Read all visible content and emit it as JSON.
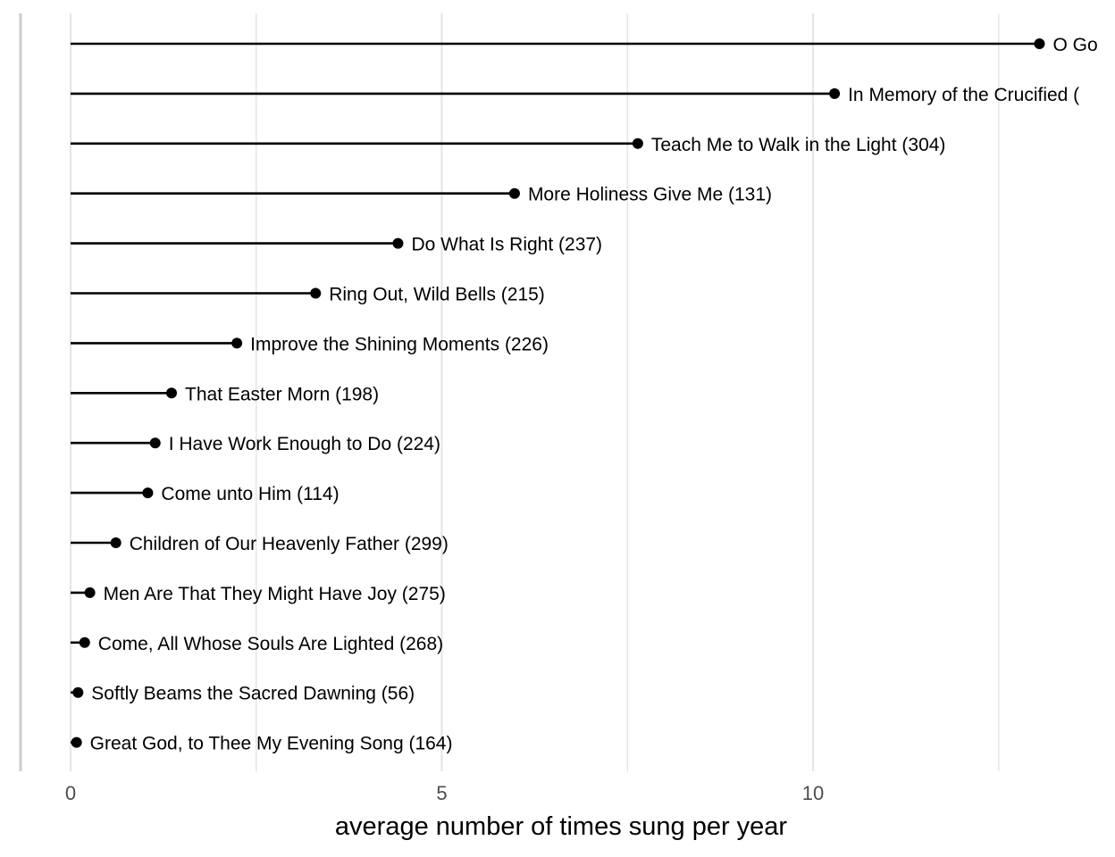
{
  "chart_data": {
    "type": "lollipop",
    "orientation": "horizontal",
    "xlabel": "average number of times sung per year",
    "ylabel": "",
    "xlim": [
      0,
      13.5
    ],
    "x_ticks": [
      0,
      5,
      10
    ],
    "x_tick_labels": [
      "0",
      "5",
      "10"
    ],
    "grid": true,
    "legend": "none",
    "colors": {
      "stem": "#000000",
      "point": "#000000",
      "grid": "#e6e6e6",
      "axis_line": "#cccccc"
    },
    "series": [
      {
        "label": "O Go",
        "value": 13.05
      },
      {
        "label": "In Memory of the Crucified (",
        "value": 10.29
      },
      {
        "label": "Teach Me to Walk in the Light (304)",
        "value": 7.64
      },
      {
        "label": "More Holiness Give Me (131)",
        "value": 5.98
      },
      {
        "label": "Do What Is Right (237)",
        "value": 4.41
      },
      {
        "label": "Ring Out, Wild Bells (215)",
        "value": 3.3
      },
      {
        "label": "Improve the Shining Moments (226)",
        "value": 2.24
      },
      {
        "label": "That Easter Morn (198)",
        "value": 1.36
      },
      {
        "label": "I Have Work Enough to Do (224)",
        "value": 1.14
      },
      {
        "label": "Come unto Him (114)",
        "value": 1.04
      },
      {
        "label": "Children of Our Heavenly Father (299)",
        "value": 0.61
      },
      {
        "label": "Men Are That They Might Have Joy (275)",
        "value": 0.26
      },
      {
        "label": "Come, All Whose Souls Are Lighted (268)",
        "value": 0.19
      },
      {
        "label": "Softly Beams the Sacred Dawning (56)",
        "value": 0.1
      },
      {
        "label": "Great God, to Thee My Evening Song (164)",
        "value": 0.08
      }
    ]
  }
}
